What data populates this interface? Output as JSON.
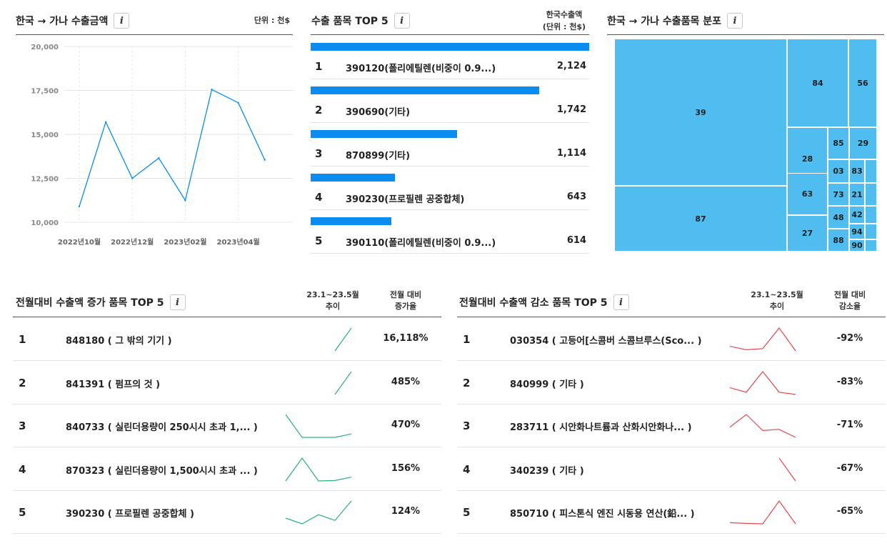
{
  "export_amount": {
    "title": "한국 → 가나  수출금액",
    "unit": "단위 : 천$"
  },
  "top5": {
    "title": "수출 품목 TOP 5",
    "col_label_1": "한국수출액",
    "col_label_2": "(단위 : 천$)",
    "items": [
      {
        "rank": "1",
        "name": "390120(폴리에틸렌(비중이 0.9...)",
        "value": "2,124",
        "num": 2124
      },
      {
        "rank": "2",
        "name": "390690(기타)",
        "value": "1,742",
        "num": 1742
      },
      {
        "rank": "3",
        "name": "870899(기타)",
        "value": "1,114",
        "num": 1114
      },
      {
        "rank": "4",
        "name": "390230(프로필렌 공중합체)",
        "value": "643",
        "num": 643
      },
      {
        "rank": "5",
        "name": "390110(폴리에틸렌(비중이 0.9...)",
        "value": "614",
        "num": 614
      }
    ]
  },
  "treemap": {
    "title": "한국 → 가나  수출품목 분포",
    "labels": [
      "39",
      "87",
      "84",
      "56",
      "28",
      "85",
      "29",
      "03",
      "83",
      "63",
      "73",
      "21",
      "42",
      "48",
      "94",
      "27",
      "88",
      "90"
    ]
  },
  "increase": {
    "title": "전월대비 수출액 증가 품목 TOP 5",
    "col_trend_1": "23.1~23.5월",
    "col_trend_2": "추이",
    "col_rate_1": "전월 대비",
    "col_rate_2": "증가율",
    "color": "#2ab27b",
    "rows": [
      {
        "rank": "1",
        "name": "848180 ( 그 밖의 기기 )",
        "rate": "16,118%",
        "trend": [
          null,
          null,
          null,
          0,
          1
        ]
      },
      {
        "rank": "2",
        "name": "841391 ( 펌프의 것 )",
        "rate": "485%",
        "trend": [
          null,
          null,
          null,
          0,
          1
        ]
      },
      {
        "rank": "3",
        "name": "840733 ( 실린더용량이 250시시 초과 1,... )",
        "rate": "470%",
        "trend": [
          1,
          0,
          0,
          0,
          0.15
        ]
      },
      {
        "rank": "4",
        "name": "870323 ( 실린더용량이 1,500시시 초과 ... )",
        "rate": "156%",
        "trend": [
          0,
          1,
          0,
          0.02,
          0.17
        ]
      },
      {
        "rank": "5",
        "name": "390230 ( 프로필렌 공중합체 )",
        "rate": "124%",
        "trend": [
          0.25,
          0,
          0.4,
          0.15,
          1
        ]
      }
    ]
  },
  "decrease": {
    "title": "전월대비 수출액 감소 품목 TOP 5",
    "col_trend_1": "23.1~23.5월",
    "col_trend_2": "추이",
    "col_rate_1": "전월 대비",
    "col_rate_2": "감소율",
    "color": "#e8474b",
    "rows": [
      {
        "rank": "1",
        "name": "030354 ( 고등어[스콤버 스콤브루스(Sco... )",
        "rate": "-92%",
        "trend": [
          0.2,
          0.05,
          0.1,
          1,
          0
        ]
      },
      {
        "rank": "2",
        "name": "840999 ( 기타 )",
        "rate": "-83%",
        "trend": [
          0.3,
          0.1,
          1,
          0.1,
          0
        ]
      },
      {
        "rank": "3",
        "name": "283711 ( 시안화나트륨과 산화시안화나... )",
        "rate": "-71%",
        "trend": [
          0.45,
          1,
          0.3,
          0.35,
          0
        ]
      },
      {
        "rank": "4",
        "name": "340239 ( 기타 )",
        "rate": "-67%",
        "trend": [
          null,
          null,
          null,
          1,
          0
        ]
      },
      {
        "rank": "5",
        "name": "850710 ( 피스톤식 엔진 시동용 연산(鉛... )",
        "rate": "-65%",
        "trend": [
          0.05,
          0.02,
          0,
          1,
          0
        ]
      }
    ]
  },
  "chart_data": {
    "type": "line",
    "x": [
      "2022년10월",
      "2022년11월",
      "2022년12월",
      "2023년01월",
      "2023년02월",
      "2023년03월",
      "2023년04월",
      "2023년05월"
    ],
    "tick_labels": [
      "2022년10월",
      "2022년12월",
      "2023년02월",
      "2023년04월"
    ],
    "y_ticks": [
      "10,000",
      "12,500",
      "15,000",
      "17,500",
      "20,000"
    ],
    "values": [
      10900,
      15700,
      12500,
      13650,
      11250,
      17550,
      16800,
      13550
    ],
    "ylim": [
      10000,
      20000
    ],
    "grid": true,
    "color": "#0b8cf1"
  }
}
